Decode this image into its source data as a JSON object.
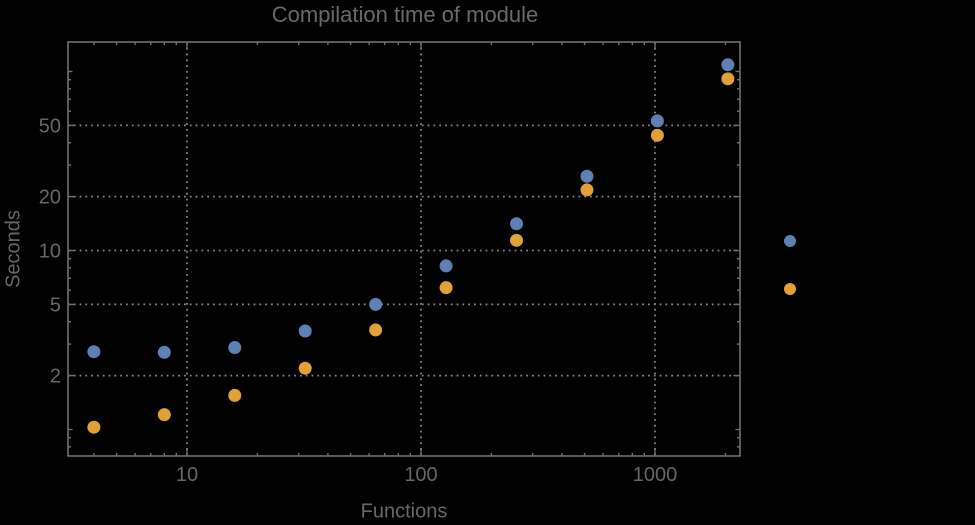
{
  "page": {
    "background": "#000000"
  },
  "chart_data": {
    "type": "scatter",
    "title": "Compilation time of module",
    "xlabel": "Functions",
    "ylabel": "Seconds",
    "x_scale": "log",
    "y_scale": "log",
    "x_range": [
      3.1,
      2300
    ],
    "y_range": [
      0.71,
      146
    ],
    "grid": {
      "on": true,
      "style": "dotted",
      "color": "#868686",
      "x_values": [
        10,
        100,
        1000
      ],
      "y_values": [
        2,
        5,
        10,
        20,
        50
      ]
    },
    "x": [
      4,
      8,
      16,
      32,
      64,
      128,
      256,
      512,
      1024,
      2048
    ],
    "series": [
      {
        "name": "",
        "color": "#5E81B5",
        "values": [
          2.72,
          2.7,
          2.87,
          3.55,
          5.0,
          8.2,
          14.1,
          26,
          53,
          109
        ]
      },
      {
        "name": "",
        "color": "#E2A137",
        "values": [
          1.03,
          1.21,
          1.55,
          2.2,
          3.6,
          6.2,
          11.4,
          21.8,
          44,
          91
        ]
      }
    ],
    "x_ticks": {
      "major": [
        10,
        100,
        1000
      ],
      "labels": [
        "10",
        "100",
        "1000"
      ],
      "minor": [
        4,
        5,
        6,
        7,
        8,
        9,
        20,
        30,
        40,
        50,
        60,
        70,
        80,
        90,
        200,
        300,
        400,
        500,
        600,
        700,
        800,
        900,
        2000
      ]
    },
    "y_ticks": {
      "major": [
        2,
        5,
        10,
        20,
        50
      ],
      "labels": [
        "2",
        "5",
        "10",
        "20",
        "50"
      ],
      "medium": [
        1,
        100
      ],
      "minor": [
        0.8,
        0.9,
        3,
        4,
        6,
        7,
        8,
        9,
        30,
        40,
        60,
        70,
        80,
        90
      ]
    },
    "legend": {
      "position": "right-outside",
      "markers": [
        {
          "color": "#5E81B5",
          "label": ""
        },
        {
          "color": "#E2A137",
          "label": ""
        }
      ]
    },
    "frame_color": "#717171",
    "text_color": "#676767"
  }
}
